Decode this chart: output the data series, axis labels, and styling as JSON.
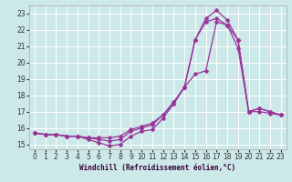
{
  "xlabel": "Windchill (Refroidissement éolien,°C)",
  "xlim": [
    -0.5,
    23.5
  ],
  "ylim": [
    14.7,
    23.5
  ],
  "yticks": [
    15,
    16,
    17,
    18,
    19,
    20,
    21,
    22,
    23
  ],
  "xticks": [
    0,
    1,
    2,
    3,
    4,
    5,
    6,
    7,
    8,
    9,
    10,
    11,
    12,
    13,
    14,
    15,
    16,
    17,
    18,
    19,
    20,
    21,
    22,
    23
  ],
  "bg_color": "#cce8e8",
  "grid_color": "#ffffff",
  "line_color": "#993399",
  "line1_x": [
    0,
    1,
    2,
    3,
    4,
    5,
    6,
    7,
    8,
    9,
    10,
    11,
    12,
    13,
    14,
    15,
    16,
    17,
    18,
    19,
    20,
    21,
    22,
    23
  ],
  "line1_y": [
    15.7,
    15.6,
    15.6,
    15.5,
    15.5,
    15.3,
    15.1,
    14.9,
    15.0,
    15.5,
    15.8,
    15.9,
    16.6,
    17.5,
    18.5,
    19.3,
    19.5,
    22.5,
    22.3,
    20.9,
    17.0,
    17.0,
    16.9,
    16.8
  ],
  "line2_x": [
    0,
    1,
    2,
    3,
    4,
    5,
    6,
    7,
    8,
    9,
    10,
    11,
    12,
    13,
    14,
    15,
    16,
    17,
    18,
    19,
    20,
    21,
    22,
    23
  ],
  "line2_y": [
    15.7,
    15.6,
    15.6,
    15.5,
    15.5,
    15.4,
    15.3,
    15.2,
    15.3,
    15.8,
    16.0,
    16.2,
    16.8,
    17.5,
    18.5,
    21.4,
    22.5,
    22.7,
    22.3,
    21.4,
    17.0,
    17.2,
    17.0,
    16.8
  ],
  "line3_x": [
    0,
    1,
    2,
    3,
    4,
    5,
    6,
    7,
    8,
    9,
    10,
    11,
    12,
    13,
    14,
    15,
    16,
    17,
    18,
    19,
    20,
    21,
    22,
    23
  ],
  "line3_y": [
    15.7,
    15.6,
    15.6,
    15.5,
    15.5,
    15.4,
    15.4,
    15.4,
    15.5,
    15.9,
    16.1,
    16.3,
    16.8,
    17.6,
    18.5,
    21.4,
    22.7,
    23.2,
    22.6,
    21.4,
    17.0,
    17.2,
    17.0,
    16.8
  ]
}
